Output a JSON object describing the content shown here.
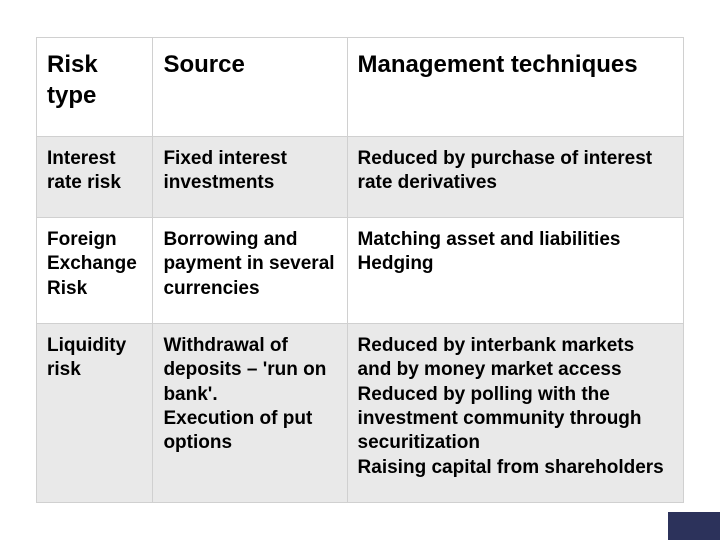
{
  "table": {
    "type": "table",
    "columns": [
      {
        "label": "Risk type",
        "width_pct": 18,
        "align": "left"
      },
      {
        "label": "Source",
        "width_pct": 30,
        "align": "left"
      },
      {
        "label": "Management techniques",
        "width_pct": 52,
        "align": "left"
      }
    ],
    "rows": [
      {
        "alt": true,
        "risk_type": "Interest rate risk",
        "source": "Fixed interest investments",
        "management": "Reduced by purchase of interest rate derivatives"
      },
      {
        "alt": false,
        "risk_type": "Foreign Exchange Risk",
        "source": "Borrowing and payment in several currencies",
        "management": "Matching asset and liabilities\nHedging"
      },
      {
        "alt": true,
        "risk_type": "Liquidity risk",
        "source": "Withdrawal of deposits – 'run on bank'.\nExecution of put options",
        "management": "Reduced by interbank markets and by money market access\nReduced by polling with the investment community through securitization\nRaising capital from shareholders"
      }
    ],
    "colors": {
      "background": "#ffffff",
      "alt_row_bg": "#e9e9e9",
      "plain_row_bg": "#ffffff",
      "border": "#d0d0d0",
      "text": "#000000",
      "footer_mark": "#2c325b"
    },
    "typography": {
      "header_fontsize_pt": 18,
      "cell_fontsize_pt": 14,
      "header_weight": "bold",
      "cell_weight": "bold",
      "font_family": "Arial"
    }
  }
}
